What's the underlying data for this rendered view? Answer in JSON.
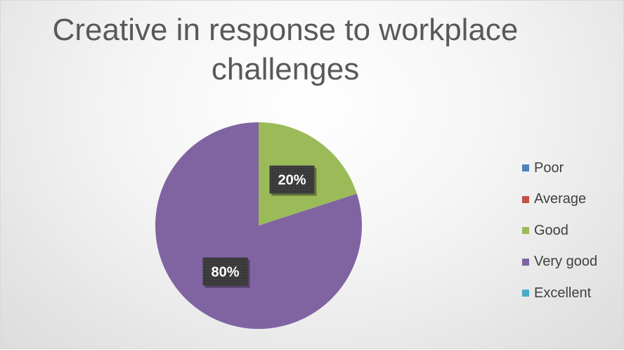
{
  "chart_data": {
    "type": "pie",
    "title": "Creative in response to workplace challenges",
    "categories": [
      "Poor",
      "Average",
      "Good",
      "Very good",
      "Excellent"
    ],
    "values": [
      0,
      0,
      20,
      80,
      0
    ],
    "data_labels": [
      "",
      "",
      "20%",
      "80%",
      ""
    ],
    "colors": [
      "#4f81bd",
      "#c0504d",
      "#9bbb59",
      "#8064a2",
      "#4bacc6"
    ],
    "start_angle_deg": 0,
    "direction": "clockwise",
    "legend_position": "right",
    "label_style": "dark-box"
  }
}
